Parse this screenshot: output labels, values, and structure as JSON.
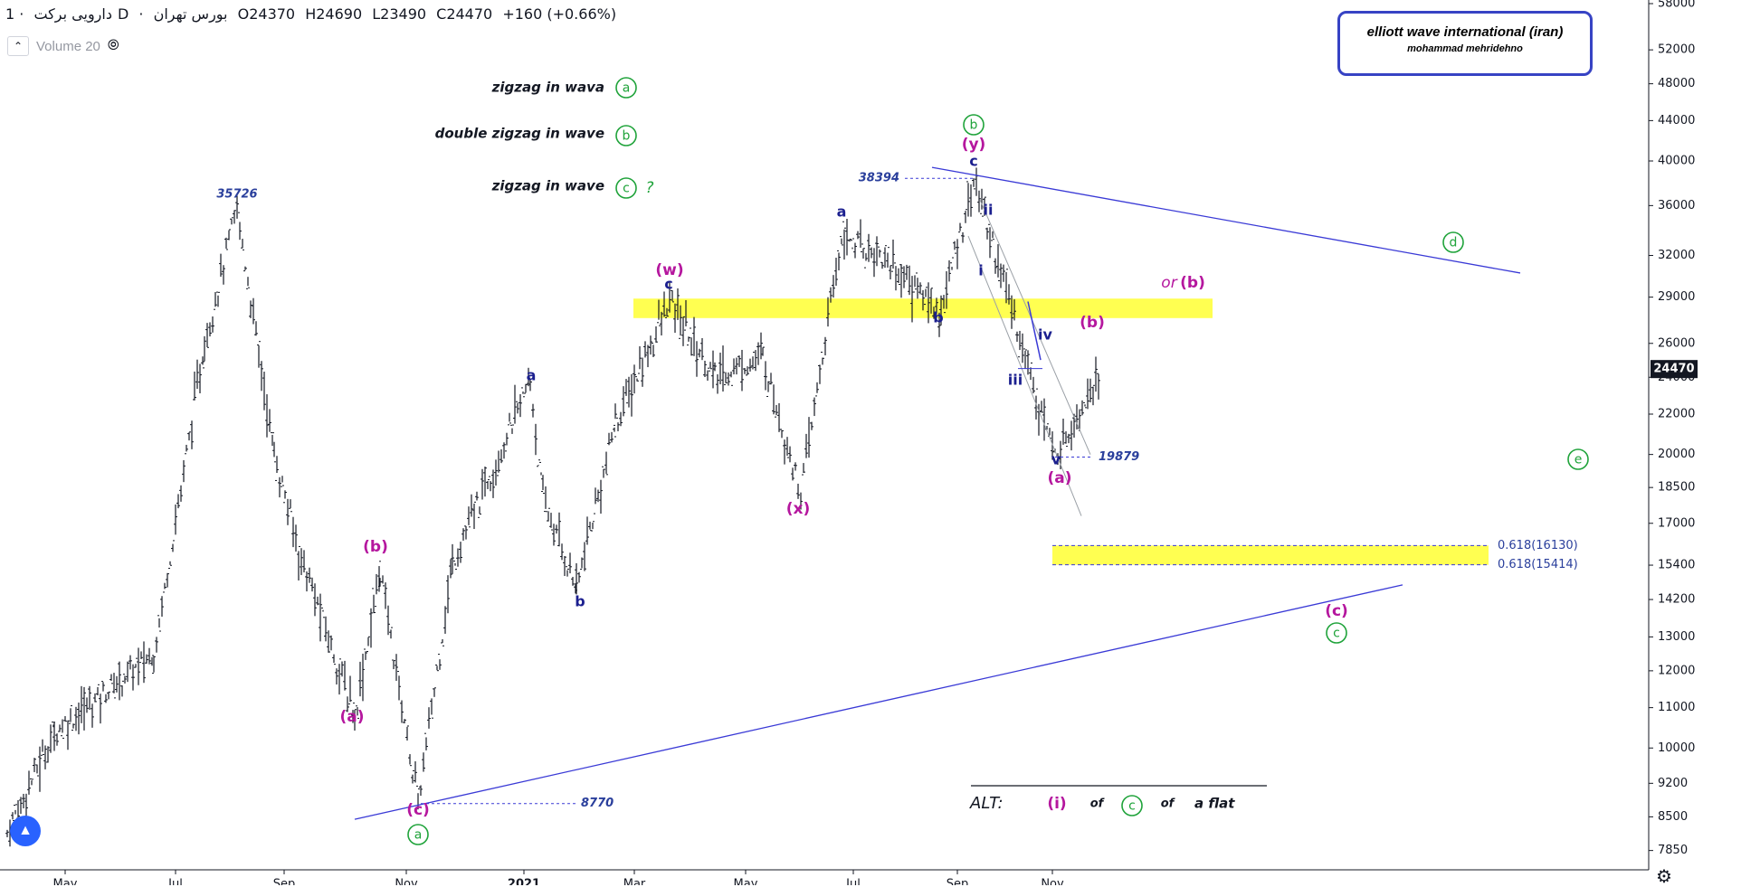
{
  "header": {
    "symbol": "دارویی برکت",
    "sep": "·",
    "interval": "1D",
    "exchange": "بورس تهران",
    "open": "O24370",
    "high": "H24690",
    "low": "L23490",
    "close": "C24470",
    "change": "+160 (+0.66%)"
  },
  "volume_label": "Volume 20",
  "brand": {
    "line1": "elliott wave international (iran)",
    "line2": "mohammad mehridehno"
  },
  "colors": {
    "purple": "#b5179e",
    "green": "#1fa33a",
    "navy": "#1b1f8f",
    "blue_text": "#2a3f9c",
    "trendline": "#3a3ad6",
    "yellow": "#ffff33",
    "bar": "#131722",
    "price_badge": "#131722"
  },
  "chart_data": {
    "type": "ohlc",
    "y_scale": "log",
    "ylim": [
      7500,
      58000
    ],
    "y_ticks": [
      58000,
      52000,
      48000,
      44000,
      40000,
      36000,
      32000,
      29000,
      26000,
      24000,
      22000,
      20000,
      18500,
      17000,
      15400,
      14200,
      13000,
      12000,
      11000,
      10000,
      9200,
      8500,
      7850
    ],
    "current_price_label": "24470",
    "x_labels": [
      "May",
      "Jul",
      "Sep",
      "Nov",
      "2021",
      "Mar",
      "May",
      "Jul",
      "Sep",
      "Nov"
    ],
    "price_path": [
      [
        "May",
        8200
      ],
      [
        "May",
        10400
      ],
      [
        "Jul",
        12500
      ],
      [
        "Jul",
        26000
      ],
      [
        "Jul",
        35726
      ],
      [
        "Sep",
        20000
      ],
      [
        "Sep",
        16000
      ],
      [
        "Sep",
        10800
      ],
      [
        "Nov",
        15200
      ],
      [
        "Nov",
        8770
      ],
      [
        "2021",
        15500
      ],
      [
        "2021",
        23800
      ],
      [
        "2021",
        18000
      ],
      [
        "2021",
        14600
      ],
      [
        "Mar",
        21500
      ],
      [
        "Mar",
        28700
      ],
      [
        "May",
        24000
      ],
      [
        "May",
        25200
      ],
      [
        "May",
        18200
      ],
      [
        "Jul",
        33500
      ],
      [
        "Jul",
        32000
      ],
      [
        "Sep",
        28000
      ],
      [
        "Sep",
        38394
      ],
      [
        "Nov",
        19879
      ],
      [
        "Nov",
        24470
      ]
    ],
    "price_labels": [
      {
        "text": "35726",
        "price": 35726
      },
      {
        "text": "38394",
        "price": 38394
      },
      {
        "text": "19879",
        "price": 19879
      },
      {
        "text": "8770",
        "price": 8770
      }
    ],
    "fib_levels": [
      {
        "label": "0.618(16130)",
        "price": 16130
      },
      {
        "label": "0.618(15414)",
        "price": 15414
      }
    ],
    "wave_labels": [
      {
        "text": "(a)",
        "color": "purple"
      },
      {
        "text": "(b)",
        "color": "purple"
      },
      {
        "text": "(c)",
        "color": "purple"
      },
      {
        "text": "a",
        "color": "green",
        "circled": true
      },
      {
        "text": "a",
        "color": "navy"
      },
      {
        "text": "b",
        "color": "navy"
      },
      {
        "text": "c",
        "color": "navy"
      },
      {
        "text": "(w)",
        "color": "purple"
      },
      {
        "text": "(x)",
        "color": "purple"
      },
      {
        "text": "a",
        "color": "navy"
      },
      {
        "text": "b",
        "color": "navy"
      },
      {
        "text": "c",
        "color": "navy"
      },
      {
        "text": "(y)",
        "color": "purple"
      },
      {
        "text": "b",
        "color": "green",
        "circled": true
      },
      {
        "text": "i",
        "color": "navy"
      },
      {
        "text": "ii",
        "color": "navy"
      },
      {
        "text": "iii",
        "color": "navy"
      },
      {
        "text": "iv",
        "color": "navy"
      },
      {
        "text": "v",
        "color": "navy"
      },
      {
        "text": "(a)",
        "color": "purple"
      },
      {
        "text": "(b)",
        "color": "purple"
      },
      {
        "text": "(c)",
        "color": "purple"
      },
      {
        "text": "c",
        "color": "green",
        "circled": true
      },
      {
        "text": "d",
        "color": "green",
        "circled": true
      },
      {
        "text": "e",
        "color": "green",
        "circled": true
      },
      {
        "text": "(b)",
        "color": "purple"
      }
    ],
    "annotations": {
      "zigzag_a": "zigzag in wava",
      "zigzag_b": "double zigzag in wave",
      "zigzag_c": "zigzag in wave",
      "question": "?",
      "or_text": "or",
      "alt_text": "ALT:",
      "alt_i": "(i)",
      "alt_of1": "of",
      "alt_c": "c",
      "alt_of2": "of",
      "alt_flat": "a flat"
    }
  }
}
